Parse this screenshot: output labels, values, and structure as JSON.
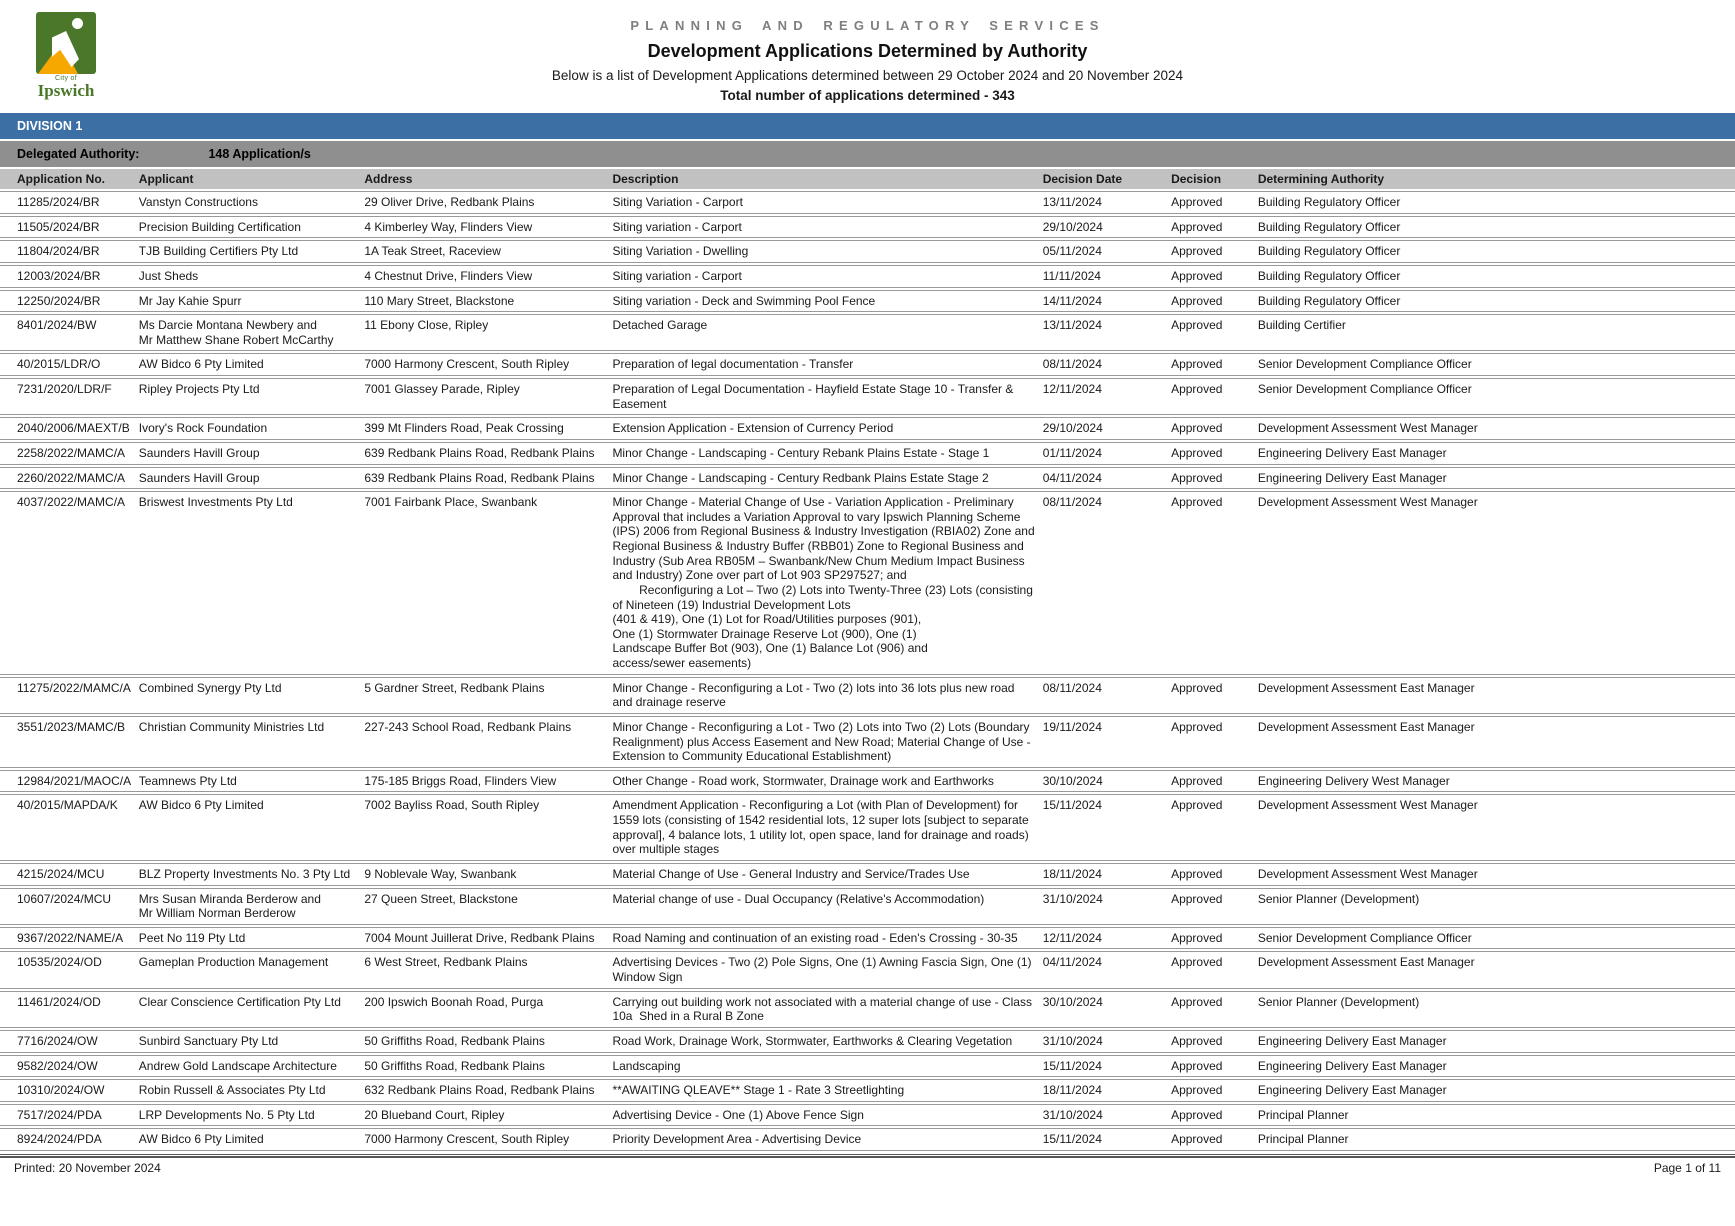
{
  "colors": {
    "division-bar": "#3C6FA4",
    "authority-bar": "#8F8F8F",
    "column-header": "#C1C1C1",
    "row-border": "#9A9A9A",
    "logo-green": "#4A7729",
    "logo-yellow": "#F6A800",
    "dept-gray": "#7F7F7F"
  },
  "header": {
    "logo_city": "City of",
    "logo_name": "Ipswich",
    "dept": "PLANNING AND REGULATORY SERVICES",
    "title": "Development Applications Determined by Authority",
    "subtitle": "Below is a list of Development Applications determined between 29 October 2024 and 20 November 2024",
    "total": "Total number of applications determined - 343"
  },
  "division": {
    "label": "DIVISION 1"
  },
  "authority_bar": {
    "label": "Delegated Authority:",
    "count": "148 Application/s"
  },
  "table": {
    "columns": [
      "Application No.",
      "Applicant",
      "Address",
      "Description",
      "Decision Date",
      "Decision",
      "Determining Authority"
    ],
    "rows": [
      {
        "app_no": "11285/2024/BR",
        "applicant": "Vanstyn Constructions",
        "address": "29 Oliver Drive, Redbank Plains",
        "description": "Siting Variation - Carport",
        "decision_date": "13/11/2024",
        "decision": "Approved",
        "authority": "Building Regulatory Officer"
      },
      {
        "app_no": "11505/2024/BR",
        "applicant": "Precision Building Certification",
        "address": "4 Kimberley Way, Flinders View",
        "description": "Siting variation - Carport",
        "decision_date": "29/10/2024",
        "decision": "Approved",
        "authority": "Building Regulatory Officer"
      },
      {
        "app_no": "11804/2024/BR",
        "applicant": "TJB Building Certifiers Pty Ltd",
        "address": "1A Teak Street, Raceview",
        "description": "Siting Variation - Dwelling",
        "decision_date": "05/11/2024",
        "decision": "Approved",
        "authority": "Building Regulatory Officer"
      },
      {
        "app_no": "12003/2024/BR",
        "applicant": "Just Sheds",
        "address": "4 Chestnut Drive, Flinders View",
        "description": "Siting variation - Carport",
        "decision_date": "11/11/2024",
        "decision": "Approved",
        "authority": "Building Regulatory Officer"
      },
      {
        "app_no": "12250/2024/BR",
        "applicant": "Mr Jay Kahie Spurr",
        "address": "110 Mary Street, Blackstone",
        "description": "Siting variation - Deck and Swimming Pool Fence",
        "decision_date": "14/11/2024",
        "decision": "Approved",
        "authority": "Building Regulatory Officer"
      },
      {
        "app_no": "8401/2024/BW",
        "applicant": "Ms Darcie Montana Newbery and\nMr Matthew Shane Robert McCarthy",
        "address": "11 Ebony Close, Ripley",
        "description": "Detached Garage",
        "decision_date": "13/11/2024",
        "decision": "Approved",
        "authority": "Building Certifier"
      },
      {
        "app_no": "40/2015/LDR/O",
        "applicant": "AW Bidco 6 Pty Limited",
        "address": "7000 Harmony Crescent, South Ripley",
        "description": "Preparation of legal documentation - Transfer",
        "decision_date": "08/11/2024",
        "decision": "Approved",
        "authority": "Senior Development Compliance Officer"
      },
      {
        "app_no": "7231/2020/LDR/F",
        "applicant": "Ripley Projects Pty Ltd",
        "address": "7001 Glassey Parade, Ripley",
        "description": "Preparation of Legal Documentation - Hayfield Estate Stage 10 - Transfer & Easement",
        "decision_date": "12/11/2024",
        "decision": "Approved",
        "authority": "Senior Development Compliance Officer"
      },
      {
        "app_no": "2040/2006/MAEXT/B",
        "applicant": "Ivory's Rock Foundation",
        "address": "399 Mt Flinders Road, Peak Crossing",
        "description": "Extension Application - Extension of Currency Period",
        "decision_date": "29/10/2024",
        "decision": "Approved",
        "authority": "Development Assessment West Manager"
      },
      {
        "app_no": "2258/2022/MAMC/A",
        "applicant": "Saunders Havill Group",
        "address": "639 Redbank Plains Road, Redbank Plains",
        "description": "Minor Change - Landscaping - Century Rebank Plains Estate - Stage 1",
        "decision_date": "01/11/2024",
        "decision": "Approved",
        "authority": "Engineering Delivery East Manager"
      },
      {
        "app_no": "2260/2022/MAMC/A",
        "applicant": "Saunders Havill Group",
        "address": "639 Redbank Plains Road, Redbank Plains",
        "description": "Minor Change - Landscaping - Century Redbank Plains Estate Stage 2",
        "decision_date": "04/11/2024",
        "decision": "Approved",
        "authority": "Engineering Delivery East Manager"
      },
      {
        "app_no": "4037/2022/MAMC/A",
        "applicant": "Briswest Investments Pty Ltd",
        "address": "7001 Fairbank Place, Swanbank",
        "description": "Minor Change - Material Change of Use - Variation Application - Preliminary Approval that includes a Variation Approval to vary Ipswich Planning Scheme (IPS) 2006 from Regional Business & Industry Investigation (RBIA02) Zone and Regional Business & Industry Buffer (RBB01) Zone to Regional Business and Industry (Sub Area RB05M – Swanbank/New Chum Medium Impact Business and Industry) Zone over part of Lot 903 SP297527; and\n        Reconfiguring a Lot – Two (2) Lots into Twenty-Three (23) Lots (consisting of Nineteen (19) Industrial Development Lots\n(401 & 419), One (1) Lot for Road/Utilities purposes (901),\nOne (1) Stormwater Drainage Reserve Lot (900), One (1)\nLandscape Buffer Bot (903), One (1) Balance Lot (906) and\naccess/sewer easements)",
        "decision_date": "08/11/2024",
        "decision": "Approved",
        "authority": "Development Assessment West Manager"
      },
      {
        "app_no": "11275/2022/MAMC/A",
        "applicant": "Combined Synergy Pty Ltd",
        "address": "5 Gardner Street, Redbank Plains",
        "description": "Minor Change - Reconfiguring a Lot - Two (2) lots into 36 lots plus new road and drainage reserve",
        "decision_date": "08/11/2024",
        "decision": "Approved",
        "authority": "Development Assessment East Manager"
      },
      {
        "app_no": "3551/2023/MAMC/B",
        "applicant": "Christian Community Ministries Ltd",
        "address": "227-243 School Road, Redbank Plains",
        "description": "Minor Change - Reconfiguring a Lot - Two (2) Lots into Two (2) Lots (Boundary Realignment) plus Access Easement and New Road; Material Change of Use - Extension to Community Educational Establishment)",
        "decision_date": "19/11/2024",
        "decision": "Approved",
        "authority": "Development Assessment East Manager"
      },
      {
        "app_no": "12984/2021/MAOC/A",
        "applicant": "Teamnews Pty Ltd",
        "address": "175-185 Briggs Road, Flinders View",
        "description": "Other Change - Road work, Stormwater, Drainage work and Earthworks",
        "decision_date": "30/10/2024",
        "decision": "Approved",
        "authority": "Engineering Delivery West Manager"
      },
      {
        "app_no": "40/2015/MAPDA/K",
        "applicant": "AW Bidco 6 Pty Limited",
        "address": "7002 Bayliss Road, South Ripley",
        "description": "Amendment Application - Reconfiguring a Lot (with Plan of Development) for 1559 lots (consisting of 1542 residential lots, 12 super lots [subject to separate approval], 4 balance lots, 1 utility lot, open space, land for drainage and roads) over multiple stages",
        "decision_date": "15/11/2024",
        "decision": "Approved",
        "authority": "Development Assessment West Manager"
      },
      {
        "app_no": "4215/2024/MCU",
        "applicant": "BLZ Property Investments No. 3 Pty Ltd",
        "address": "9 Noblevale Way, Swanbank",
        "description": "Material Change of Use - General Industry and Service/Trades Use",
        "decision_date": "18/11/2024",
        "decision": "Approved",
        "authority": "Development Assessment West Manager"
      },
      {
        "app_no": "10607/2024/MCU",
        "applicant": "Mrs Susan Miranda Berderow and\nMr William Norman Berderow",
        "address": "27 Queen Street, Blackstone",
        "description": "Material change of use - Dual Occupancy (Relative's Accommodation)",
        "decision_date": "31/10/2024",
        "decision": "Approved",
        "authority": "Senior Planner (Development)"
      },
      {
        "app_no": "9367/2022/NAME/A",
        "applicant": "Peet No 119 Pty Ltd",
        "address": "7004 Mount Juillerat Drive, Redbank Plains",
        "description": "Road Naming and continuation of an existing road - Eden's Crossing - 30-35",
        "decision_date": "12/11/2024",
        "decision": "Approved",
        "authority": "Senior Development Compliance Officer"
      },
      {
        "app_no": "10535/2024/OD",
        "applicant": "Gameplan Production Management",
        "address": "6 West Street, Redbank Plains",
        "description": "Advertising Devices - Two (2) Pole Signs, One (1) Awning Fascia Sign, One (1) Window Sign",
        "decision_date": "04/11/2024",
        "decision": "Approved",
        "authority": "Development Assessment East Manager"
      },
      {
        "app_no": "11461/2024/OD",
        "applicant": "Clear Conscience Certification Pty Ltd",
        "address": "200 Ipswich Boonah Road, Purga",
        "description": "Carrying out building work not associated with a material change of use - Class 10a  Shed in a Rural B Zone",
        "decision_date": "30/10/2024",
        "decision": "Approved",
        "authority": "Senior Planner (Development)"
      },
      {
        "app_no": "7716/2024/OW",
        "applicant": "Sunbird Sanctuary Pty Ltd",
        "address": "50 Griffiths Road, Redbank Plains",
        "description": "Road Work, Drainage Work, Stormwater, Earthworks & Clearing Vegetation",
        "decision_date": "31/10/2024",
        "decision": "Approved",
        "authority": "Engineering Delivery East Manager"
      },
      {
        "app_no": "9582/2024/OW",
        "applicant": "Andrew Gold Landscape Architecture",
        "address": "50 Griffiths Road, Redbank Plains",
        "description": "Landscaping",
        "decision_date": "15/11/2024",
        "decision": "Approved",
        "authority": "Engineering Delivery East Manager"
      },
      {
        "app_no": "10310/2024/OW",
        "applicant": "Robin Russell & Associates Pty Ltd",
        "address": "632 Redbank Plains Road, Redbank Plains",
        "description": "**AWAITING QLEAVE** Stage 1 - Rate 3 Streetlighting",
        "decision_date": "18/11/2024",
        "decision": "Approved",
        "authority": "Engineering Delivery East Manager"
      },
      {
        "app_no": "7517/2024/PDA",
        "applicant": "LRP Developments No. 5 Pty Ltd",
        "address": "20 Blueband Court, Ripley",
        "description": "Advertising Device - One (1) Above Fence Sign",
        "decision_date": "31/10/2024",
        "decision": "Approved",
        "authority": "Principal Planner"
      },
      {
        "app_no": "8924/2024/PDA",
        "applicant": "AW Bidco 6 Pty Limited",
        "address": "7000 Harmony Crescent, South Ripley",
        "description": "Priority Development Area - Advertising Device",
        "decision_date": "15/11/2024",
        "decision": "Approved",
        "authority": "Principal Planner"
      }
    ]
  },
  "footer": {
    "printed": "Printed: 20 November 2024",
    "page": "Page 1 of 11"
  }
}
